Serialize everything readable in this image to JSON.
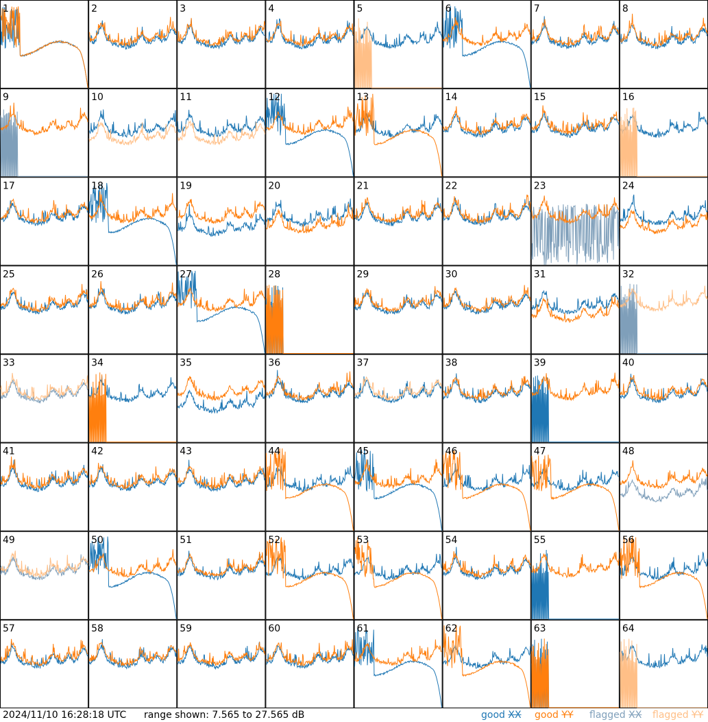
{
  "footer": {
    "timestamp": "2024/11/10 16:28:18 UTC",
    "range": "range shown: 7.565 to 27.565 dB"
  },
  "legend": [
    {
      "status": "good",
      "pol": "XX",
      "color": "#1f77b4"
    },
    {
      "status": "good",
      "pol": "YY",
      "color": "#ff7f0e"
    },
    {
      "status": "flagged",
      "pol": "XX",
      "color": "#7f9fba"
    },
    {
      "status": "flagged",
      "pol": "YY",
      "color": "#ffbf87"
    }
  ],
  "chart_data": {
    "type": "line",
    "layout": "8x8 small multiples",
    "ylim_db": [
      7.565,
      27.565
    ],
    "colors": {
      "good_xx": "#1f77b4",
      "good_yy": "#ff7f0e",
      "flagged_xx": "#7f9fba",
      "flagged_yy": "#ffbf87"
    },
    "panels": [
      {
        "label": "1",
        "xx": "roll",
        "yy": "roll",
        "xf": false,
        "yf": false
      },
      {
        "label": "2",
        "xx": "normal",
        "yy": "normal",
        "xf": false,
        "yf": false
      },
      {
        "label": "3",
        "xx": "normal",
        "yy": "normal",
        "xf": false,
        "yf": false
      },
      {
        "label": "4",
        "xx": "normal",
        "yy": "normal",
        "xf": false,
        "yf": false
      },
      {
        "label": "5",
        "xx": "normal",
        "yy": "dead",
        "xf": false,
        "yf": true
      },
      {
        "label": "6",
        "xx": "roll",
        "yy": "normal",
        "xf": false,
        "yf": false
      },
      {
        "label": "7",
        "xx": "normal",
        "yy": "normal",
        "xf": false,
        "yf": false
      },
      {
        "label": "8",
        "xx": "normal",
        "yy": "normal",
        "xf": false,
        "yf": false
      },
      {
        "label": "9",
        "xx": "dead",
        "yy": "normal",
        "xf": true,
        "yf": false
      },
      {
        "label": "10",
        "xx": "normal",
        "yy": "low",
        "xf": false,
        "yf": true
      },
      {
        "label": "11",
        "xx": "normal",
        "yy": "low",
        "xf": false,
        "yf": true
      },
      {
        "label": "12",
        "xx": "roll",
        "yy": "normal",
        "xf": false,
        "yf": false
      },
      {
        "label": "13",
        "xx": "normal",
        "yy": "roll",
        "xf": false,
        "yf": false
      },
      {
        "label": "14",
        "xx": "normal",
        "yy": "normal",
        "xf": false,
        "yf": false
      },
      {
        "label": "15",
        "xx": "normal",
        "yy": "normal",
        "xf": false,
        "yf": false
      },
      {
        "label": "16",
        "xx": "normal",
        "yy": "dead",
        "xf": false,
        "yf": true
      },
      {
        "label": "17",
        "xx": "normal",
        "yy": "normal",
        "xf": false,
        "yf": false
      },
      {
        "label": "18",
        "xx": "roll",
        "yy": "normal",
        "xf": false,
        "yf": false
      },
      {
        "label": "19",
        "xx": "low",
        "yy": "normal",
        "xf": false,
        "yf": false
      },
      {
        "label": "20",
        "xx": "normal",
        "yy": "low",
        "xf": false,
        "yf": false
      },
      {
        "label": "21",
        "xx": "normal",
        "yy": "normal",
        "xf": false,
        "yf": false
      },
      {
        "label": "22",
        "xx": "normal",
        "yy": "normal",
        "xf": false,
        "yf": false
      },
      {
        "label": "23",
        "xx": "noisy",
        "yy": "normal",
        "xf": true,
        "yf": false
      },
      {
        "label": "24",
        "xx": "normal",
        "yy": "low",
        "xf": false,
        "yf": false
      },
      {
        "label": "25",
        "xx": "normal",
        "yy": "normal",
        "xf": false,
        "yf": false
      },
      {
        "label": "26",
        "xx": "normal",
        "yy": "normal",
        "xf": false,
        "yf": false
      },
      {
        "label": "27",
        "xx": "roll",
        "yy": "normal",
        "xf": false,
        "yf": false
      },
      {
        "label": "28",
        "xx": "dead",
        "yy": "dead",
        "xf": false,
        "yf": false
      },
      {
        "label": "29",
        "xx": "normal",
        "yy": "normal",
        "xf": false,
        "yf": false
      },
      {
        "label": "30",
        "xx": "normal",
        "yy": "normal",
        "xf": false,
        "yf": false
      },
      {
        "label": "31",
        "xx": "normal",
        "yy": "low",
        "xf": false,
        "yf": false
      },
      {
        "label": "32",
        "xx": "dead",
        "yy": "normal",
        "xf": true,
        "yf": true
      },
      {
        "label": "33",
        "xx": "normal",
        "yy": "normal",
        "xf": true,
        "yf": true
      },
      {
        "label": "34",
        "xx": "normal",
        "yy": "dead",
        "xf": false,
        "yf": false
      },
      {
        "label": "35",
        "xx": "low",
        "yy": "normal",
        "xf": false,
        "yf": false
      },
      {
        "label": "36",
        "xx": "normal",
        "yy": "normal",
        "xf": false,
        "yf": false
      },
      {
        "label": "37",
        "xx": "normal",
        "yy": "normal",
        "xf": false,
        "yf": true
      },
      {
        "label": "38",
        "xx": "normal",
        "yy": "normal",
        "xf": false,
        "yf": false
      },
      {
        "label": "39",
        "xx": "dead",
        "yy": "normal",
        "xf": false,
        "yf": false
      },
      {
        "label": "40",
        "xx": "normal",
        "yy": "normal",
        "xf": false,
        "yf": false
      },
      {
        "label": "41",
        "xx": "normal",
        "yy": "normal",
        "xf": false,
        "yf": false
      },
      {
        "label": "42",
        "xx": "normal",
        "yy": "normal",
        "xf": false,
        "yf": false
      },
      {
        "label": "43",
        "xx": "normal",
        "yy": "normal",
        "xf": false,
        "yf": false
      },
      {
        "label": "44",
        "xx": "normal",
        "yy": "roll",
        "xf": false,
        "yf": false
      },
      {
        "label": "45",
        "xx": "roll",
        "yy": "normal",
        "xf": false,
        "yf": false
      },
      {
        "label": "46",
        "xx": "normal",
        "yy": "roll",
        "xf": false,
        "yf": false
      },
      {
        "label": "47",
        "xx": "normal",
        "yy": "roll",
        "xf": false,
        "yf": false
      },
      {
        "label": "48",
        "xx": "low",
        "yy": "normal",
        "xf": true,
        "yf": false
      },
      {
        "label": "49",
        "xx": "normal",
        "yy": "normal",
        "xf": true,
        "yf": true
      },
      {
        "label": "50",
        "xx": "roll",
        "yy": "normal",
        "xf": false,
        "yf": false
      },
      {
        "label": "51",
        "xx": "normal",
        "yy": "normal",
        "xf": false,
        "yf": false
      },
      {
        "label": "52",
        "xx": "normal",
        "yy": "roll",
        "xf": false,
        "yf": false
      },
      {
        "label": "53",
        "xx": "normal",
        "yy": "roll",
        "xf": false,
        "yf": false
      },
      {
        "label": "54",
        "xx": "normal",
        "yy": "normal",
        "xf": false,
        "yf": false
      },
      {
        "label": "55",
        "xx": "dead",
        "yy": "normal",
        "xf": false,
        "yf": false
      },
      {
        "label": "56",
        "xx": "normal",
        "yy": "roll",
        "xf": false,
        "yf": false
      },
      {
        "label": "57",
        "xx": "normal",
        "yy": "normal",
        "xf": false,
        "yf": false
      },
      {
        "label": "58",
        "xx": "normal",
        "yy": "normal",
        "xf": false,
        "yf": false
      },
      {
        "label": "59",
        "xx": "normal",
        "yy": "normal",
        "xf": false,
        "yf": false
      },
      {
        "label": "60",
        "xx": "normal",
        "yy": "normal",
        "xf": false,
        "yf": false
      },
      {
        "label": "61",
        "xx": "roll",
        "yy": "normal",
        "xf": false,
        "yf": false
      },
      {
        "label": "62",
        "xx": "normal",
        "yy": "roll",
        "xf": false,
        "yf": false
      },
      {
        "label": "63",
        "xx": "dead",
        "yy": "dead",
        "xf": false,
        "yf": false
      },
      {
        "label": "64",
        "xx": "normal",
        "yy": "dead",
        "xf": false,
        "yf": true
      }
    ]
  }
}
